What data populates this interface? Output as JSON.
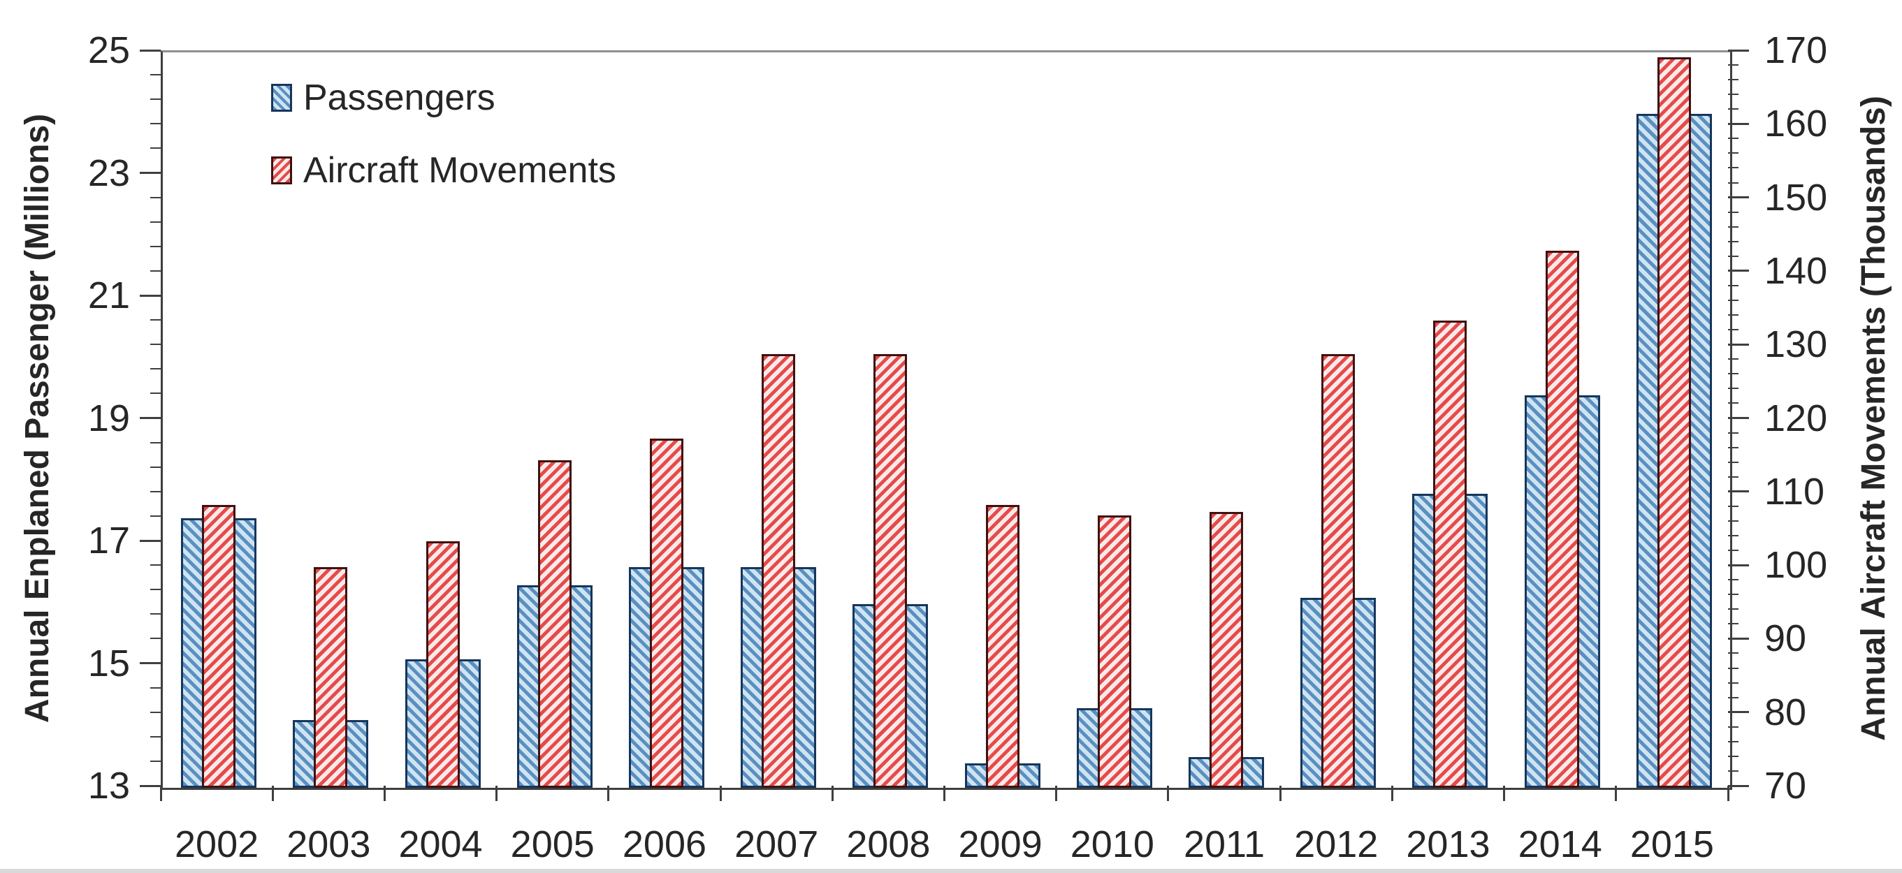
{
  "chart_data": {
    "type": "bar",
    "title": "",
    "categories": [
      "2002",
      "2003",
      "2004",
      "2005",
      "2006",
      "2007",
      "2008",
      "2009",
      "2010",
      "2011",
      "2012",
      "2013",
      "2014",
      "2015"
    ],
    "series": [
      {
        "name": "Passengers",
        "axis": "left",
        "values": [
          17.4,
          14.1,
          15.1,
          16.3,
          16.6,
          16.6,
          16.0,
          13.4,
          14.3,
          13.5,
          16.1,
          17.8,
          19.4,
          24.0
        ]
      },
      {
        "name": "Aircraft Movements",
        "axis": "right",
        "values": [
          108.5,
          100,
          103.5,
          114.5,
          117.5,
          129,
          129,
          108.5,
          107,
          107.5,
          129,
          133.5,
          143,
          169.3
        ]
      }
    ],
    "y_left": {
      "label": "Annual Enplaned Passenger (Millions)",
      "min": 13,
      "max": 25,
      "major_ticks": [
        25,
        23,
        21,
        19,
        17,
        15,
        13
      ],
      "minor_step": 0.4
    },
    "y_right": {
      "label": "Annual Aircraft Movements (Thousands)",
      "min": 70,
      "max": 170,
      "major_ticks": [
        170,
        160,
        150,
        140,
        130,
        120,
        110,
        100,
        90,
        80,
        70
      ],
      "minor_step": 2
    },
    "legend": {
      "position": "top-left",
      "entries": [
        "Passengers",
        "Aircraft Movements"
      ]
    },
    "layout": {
      "grid": false,
      "bar_style": "hatched",
      "overlap": "red narrow bar centered over wide blue bar"
    },
    "colors": {
      "passengers_stripe": "#5A8FC0",
      "passengers_bg": "#CFE4F2",
      "passengers_border": "#16365C",
      "movements_stripe": "#E64A4A",
      "movements_bg": "#F9EAEA",
      "movements_border": "#3F1210",
      "axis_text": "#262626",
      "frame": "#3F3F3F"
    }
  }
}
